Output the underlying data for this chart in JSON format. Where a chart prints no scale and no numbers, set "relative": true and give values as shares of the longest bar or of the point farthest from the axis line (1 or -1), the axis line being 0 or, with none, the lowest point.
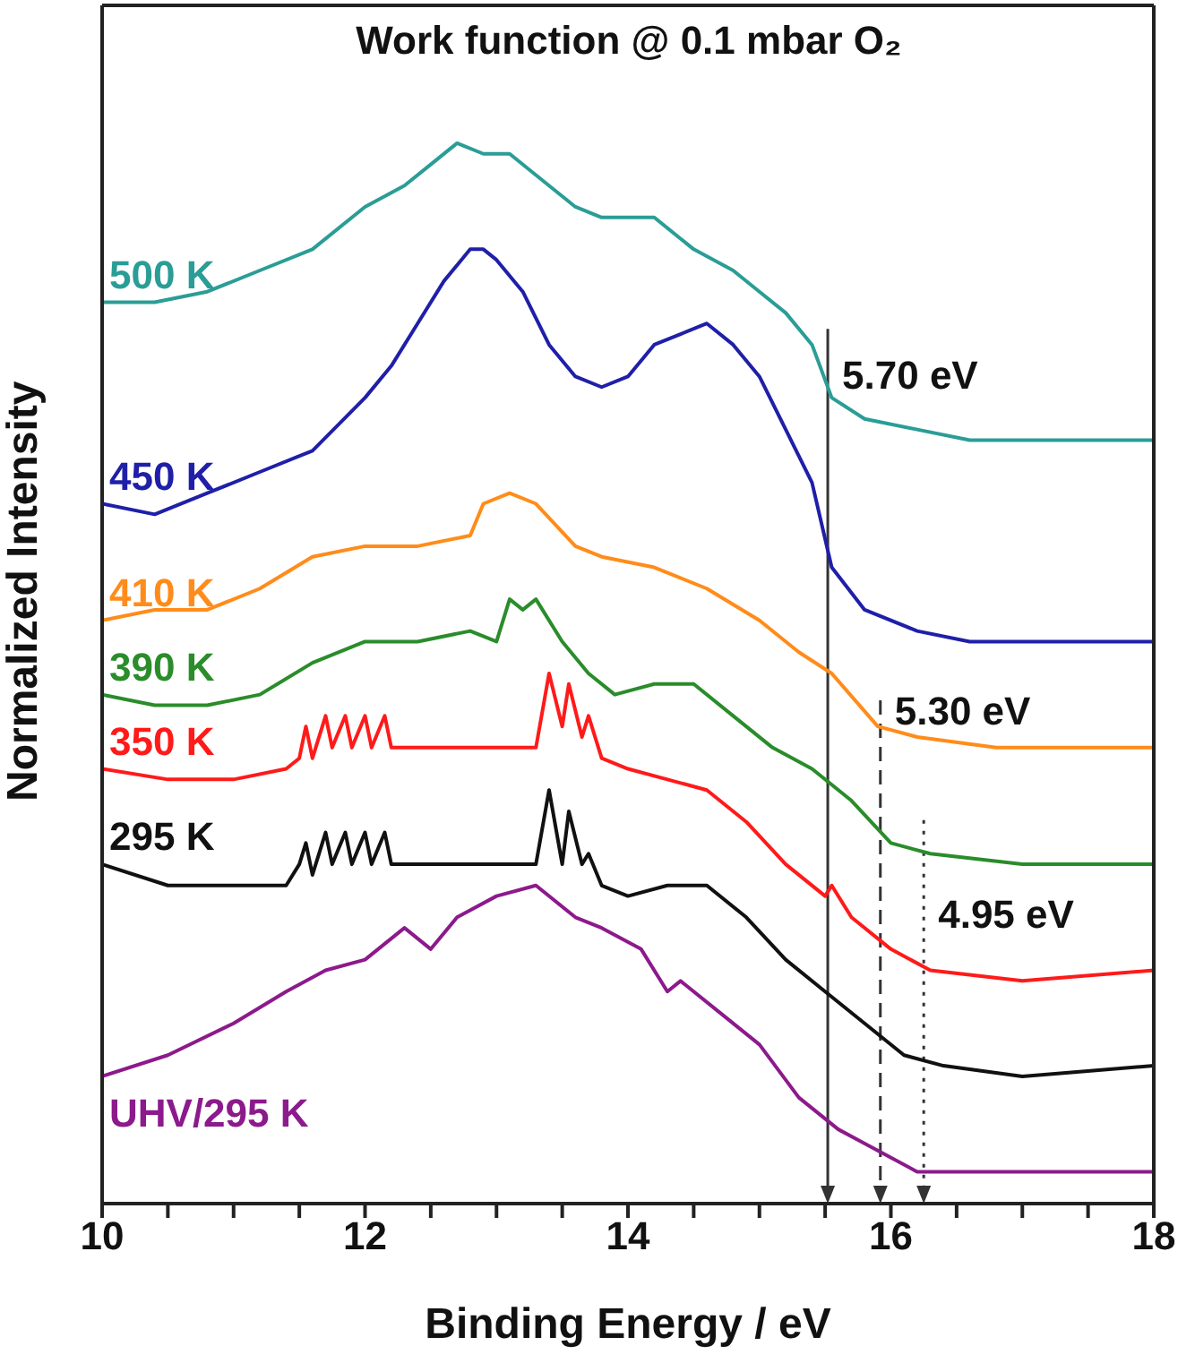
{
  "chart_data": {
    "type": "line",
    "title": "Work function @ 0.1 mbar O₂",
    "xlabel": "Binding Energy / eV",
    "ylabel": "Normalized Intensity",
    "relative": true,
    "legend": false,
    "marker": "none",
    "line_style": "solid",
    "xlim": [
      10,
      18
    ],
    "xticks": [
      10,
      {
        "value": 10.5,
        "label": null
      },
      {
        "value": 11,
        "label": null
      },
      {
        "value": 11.5,
        "label": null
      },
      12,
      {
        "value": 12.5,
        "label": null
      },
      {
        "value": 13,
        "label": null
      },
      {
        "value": 13.5,
        "label": null
      },
      14,
      {
        "value": 14.5,
        "label": null
      },
      {
        "value": 15,
        "label": null
      },
      {
        "value": 15.5,
        "label": null
      },
      16,
      {
        "value": 16.5,
        "label": null
      },
      {
        "value": 17,
        "label": null
      },
      {
        "value": 17.5,
        "label": null
      },
      18
    ],
    "series": [
      {
        "name": "500 K",
        "color": "#2a9d96",
        "x": [
          10,
          10.4,
          10.8,
          11.2,
          11.6,
          12,
          12.3,
          12.5,
          12.7,
          12.9,
          13.1,
          13.3,
          13.6,
          13.8,
          14,
          14.2,
          14.5,
          14.8,
          15,
          15.2,
          15.4,
          15.55,
          15.8,
          16.2,
          16.6,
          17,
          17.5,
          18
        ],
        "values": [
          0.85,
          0.85,
          0.86,
          0.88,
          0.9,
          0.94,
          0.96,
          0.98,
          1,
          0.99,
          0.99,
          0.97,
          0.94,
          0.93,
          0.93,
          0.93,
          0.9,
          0.88,
          0.86,
          0.84,
          0.81,
          0.76,
          0.74,
          0.73,
          0.72,
          0.72,
          0.72,
          0.72
        ]
      },
      {
        "name": "450 K",
        "color": "#1f1fa8",
        "x": [
          10,
          10.4,
          10.8,
          11.2,
          11.6,
          12,
          12.2,
          12.4,
          12.6,
          12.8,
          12.9,
          13,
          13.2,
          13.4,
          13.6,
          13.8,
          14,
          14.2,
          14.4,
          14.6,
          14.8,
          15,
          15.2,
          15.4,
          15.55,
          15.8,
          16.2,
          16.6,
          17,
          17.5,
          18
        ],
        "values": [
          0.66,
          0.65,
          0.67,
          0.69,
          0.71,
          0.76,
          0.79,
          0.83,
          0.87,
          0.9,
          0.9,
          0.89,
          0.86,
          0.81,
          0.78,
          0.77,
          0.78,
          0.81,
          0.82,
          0.83,
          0.81,
          0.78,
          0.73,
          0.68,
          0.6,
          0.56,
          0.54,
          0.53,
          0.53,
          0.53,
          0.53
        ]
      },
      {
        "name": "410 K",
        "color": "#ff8c1a",
        "x": [
          10,
          10.4,
          10.8,
          11.2,
          11.6,
          12,
          12.4,
          12.8,
          12.9,
          13.1,
          13.3,
          13.6,
          13.8,
          14.2,
          14.6,
          15,
          15.3,
          15.55,
          15.9,
          16.2,
          16.8,
          17.4,
          18
        ],
        "values": [
          0.55,
          0.56,
          0.56,
          0.58,
          0.61,
          0.62,
          0.62,
          0.63,
          0.66,
          0.67,
          0.66,
          0.62,
          0.61,
          0.6,
          0.58,
          0.55,
          0.52,
          0.5,
          0.45,
          0.44,
          0.43,
          0.43,
          0.43
        ]
      },
      {
        "name": "390 K",
        "color": "#2a8c2a",
        "x": [
          10,
          10.4,
          10.8,
          11.2,
          11.6,
          12,
          12.4,
          12.8,
          13,
          13.1,
          13.2,
          13.3,
          13.5,
          13.7,
          13.9,
          14.2,
          14.5,
          14.8,
          15.1,
          15.4,
          15.7,
          16,
          16.3,
          17,
          18
        ],
        "values": [
          0.48,
          0.47,
          0.47,
          0.48,
          0.51,
          0.53,
          0.53,
          0.54,
          0.53,
          0.57,
          0.56,
          0.57,
          0.53,
          0.5,
          0.48,
          0.49,
          0.49,
          0.46,
          0.43,
          0.41,
          0.38,
          0.34,
          0.33,
          0.32,
          0.32
        ]
      },
      {
        "name": "350 K",
        "color": "#ff1a1a",
        "x": [
          10,
          10.5,
          11,
          11.4,
          11.5,
          11.55,
          11.6,
          11.7,
          11.75,
          11.85,
          11.9,
          12,
          12.05,
          12.15,
          12.2,
          12.4,
          12.8,
          13.3,
          13.4,
          13.5,
          13.55,
          13.65,
          13.7,
          13.8,
          14,
          14.3,
          14.6,
          14.9,
          15.2,
          15.5,
          15.55,
          15.7,
          16,
          16.3,
          17,
          18
        ],
        "values": [
          0.41,
          0.4,
          0.4,
          0.41,
          0.42,
          0.45,
          0.42,
          0.46,
          0.43,
          0.46,
          0.43,
          0.46,
          0.43,
          0.46,
          0.43,
          0.43,
          0.43,
          0.43,
          0.5,
          0.45,
          0.49,
          0.44,
          0.46,
          0.42,
          0.41,
          0.4,
          0.39,
          0.36,
          0.32,
          0.29,
          0.3,
          0.27,
          0.24,
          0.22,
          0.21,
          0.22
        ]
      },
      {
        "name": "295 K",
        "color": "#111111",
        "x": [
          10,
          10.5,
          11,
          11.4,
          11.5,
          11.55,
          11.6,
          11.7,
          11.75,
          11.85,
          11.9,
          12,
          12.05,
          12.15,
          12.2,
          12.4,
          12.8,
          13.3,
          13.4,
          13.5,
          13.55,
          13.65,
          13.7,
          13.8,
          14,
          14.3,
          14.6,
          14.9,
          15.2,
          15.5,
          15.8,
          16.1,
          16.4,
          17,
          18
        ],
        "values": [
          0.32,
          0.3,
          0.3,
          0.3,
          0.32,
          0.34,
          0.31,
          0.35,
          0.32,
          0.35,
          0.32,
          0.35,
          0.32,
          0.35,
          0.32,
          0.32,
          0.32,
          0.32,
          0.39,
          0.32,
          0.37,
          0.32,
          0.33,
          0.3,
          0.29,
          0.3,
          0.3,
          0.27,
          0.23,
          0.2,
          0.17,
          0.14,
          0.13,
          0.12,
          0.13
        ]
      },
      {
        "name": "UHV/295 K",
        "color": "#8c1a8c",
        "x": [
          10,
          10.5,
          11,
          11.4,
          11.7,
          12,
          12.3,
          12.5,
          12.7,
          13,
          13.3,
          13.6,
          13.8,
          14.1,
          14.3,
          14.4,
          14.7,
          15,
          15.3,
          15.6,
          15.9,
          16.2,
          17,
          18
        ],
        "values": [
          0.12,
          0.14,
          0.17,
          0.2,
          0.22,
          0.23,
          0.26,
          0.24,
          0.27,
          0.29,
          0.3,
          0.27,
          0.26,
          0.24,
          0.2,
          0.21,
          0.18,
          0.15,
          0.1,
          0.07,
          0.05,
          0.03,
          0.03,
          0.03
        ]
      }
    ],
    "ref_lines": [
      {
        "axis": "x",
        "value": 15.52,
        "label": "5.70 eV",
        "line_style": "solid",
        "color": "#333333"
      },
      {
        "axis": "x",
        "value": 15.92,
        "label": "5.30 eV",
        "line_style": "dashed",
        "color": "#333333"
      },
      {
        "axis": "x",
        "value": 16.25,
        "label": "4.95 eV",
        "line_style": "dotted",
        "color": "#333333"
      }
    ]
  }
}
